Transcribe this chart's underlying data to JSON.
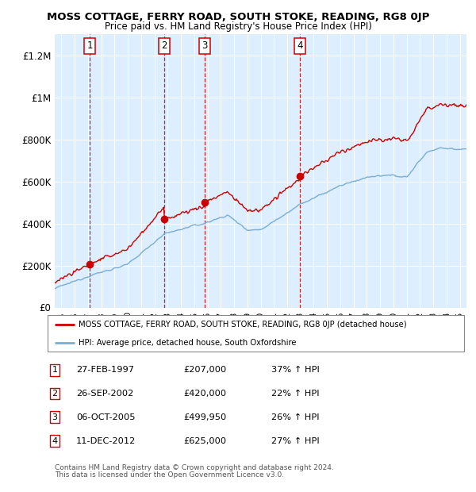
{
  "title": "MOSS COTTAGE, FERRY ROAD, SOUTH STOKE, READING, RG8 0JP",
  "subtitle": "Price paid vs. HM Land Registry's House Price Index (HPI)",
  "transactions": [
    {
      "num": 1,
      "date_str": "27-FEB-1997",
      "date_x": 1997.15,
      "price": 207000,
      "price_str": "£207,000",
      "hpi_pct": "37% ↑ HPI"
    },
    {
      "num": 2,
      "date_str": "26-SEP-2002",
      "date_x": 2002.73,
      "price": 420000,
      "price_str": "£420,000",
      "hpi_pct": "22% ↑ HPI"
    },
    {
      "num": 3,
      "date_str": "06-OCT-2005",
      "date_x": 2005.76,
      "price": 499950,
      "price_str": "£499,950",
      "hpi_pct": "26% ↑ HPI"
    },
    {
      "num": 4,
      "date_str": "11-DEC-2012",
      "date_x": 2012.94,
      "price": 625000,
      "price_str": "£625,000",
      "hpi_pct": "27% ↑ HPI"
    }
  ],
  "ylim": [
    0,
    1300000
  ],
  "xlim_start": 1994.5,
  "xlim_end": 2025.5,
  "yticks": [
    0,
    200000,
    400000,
    600000,
    800000,
    1000000,
    1200000
  ],
  "ytick_labels": [
    "£0",
    "£200K",
    "£400K",
    "£600K",
    "£800K",
    "£1M",
    "£1.2M"
  ],
  "xticks": [
    1995,
    1996,
    1997,
    1998,
    1999,
    2000,
    2001,
    2002,
    2003,
    2004,
    2005,
    2006,
    2007,
    2008,
    2009,
    2010,
    2011,
    2012,
    2013,
    2014,
    2015,
    2016,
    2017,
    2018,
    2019,
    2020,
    2021,
    2022,
    2023,
    2024,
    2025
  ],
  "legend_line1": "MOSS COTTAGE, FERRY ROAD, SOUTH STOKE, READING, RG8 0JP (detached house)",
  "legend_line2": "HPI: Average price, detached house, South Oxfordshire",
  "footer_line1": "Contains HM Land Registry data © Crown copyright and database right 2024.",
  "footer_line2": "This data is licensed under the Open Government Licence v3.0.",
  "red_color": "#cc0000",
  "blue_color": "#7aadd4",
  "bg_color": "#ddeeff",
  "grid_color": "#ffffff",
  "vline_color": "#cc0000",
  "fig_width": 6.0,
  "fig_height": 6.2,
  "dpi": 100
}
